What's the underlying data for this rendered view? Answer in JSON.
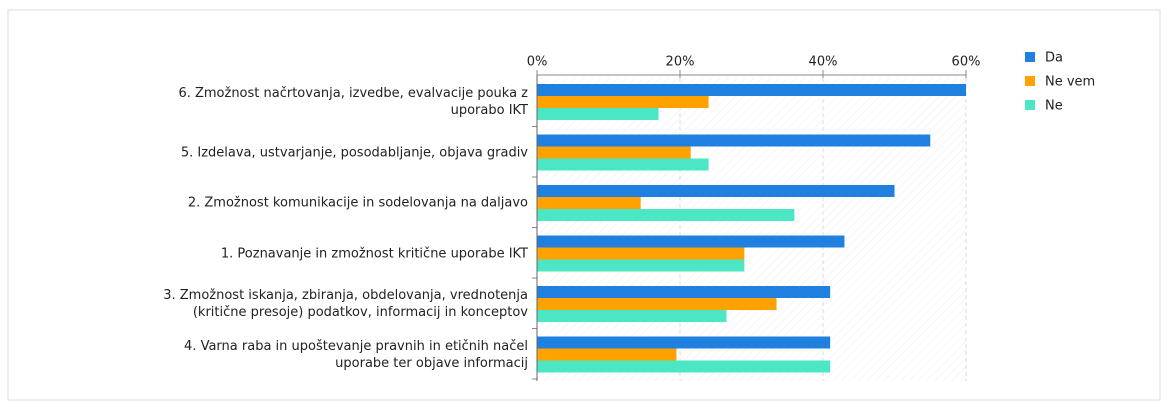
{
  "chart_data": {
    "type": "hbar",
    "categories": [
      "6. Zmožnost načrtovanja, izvedbe, evalvacije pouka z\nuporabo IKT",
      "5. Izdelava, ustvarjanje, posodabljanje, objava gradiv",
      "2. Zmožnost komunikacije in sodelovanja na daljavo",
      "1. Poznavanje in zmožnost kritične uporabe IKT",
      "3. Zmožnost iskanja, zbiranja, obdelovanja, vrednotenja\n(kritične presoje) podatkov, informacij in konceptov",
      "4. Varna raba in upoštevanje pravnih in etičnih načel\nuporabe ter objave informacij"
    ],
    "series": [
      {
        "name": "Da",
        "color": "#1f80e0",
        "values": [
          60,
          55,
          50,
          43,
          41,
          41
        ]
      },
      {
        "name": "Ne vem",
        "color": "#ffa200",
        "values": [
          24,
          21.5,
          14.5,
          29,
          33.5,
          19.5
        ]
      },
      {
        "name": "Ne",
        "color": "#4be6c3",
        "values": [
          17,
          24,
          36,
          29,
          26.5,
          41
        ]
      }
    ],
    "xlim": [
      0,
      60
    ],
    "xticks": [
      {
        "value": 0,
        "label": "0%"
      },
      {
        "value": 20,
        "label": "20%"
      },
      {
        "value": 40,
        "label": "40%"
      },
      {
        "value": 60,
        "label": "60%"
      }
    ],
    "grid": true,
    "legend": "right"
  }
}
